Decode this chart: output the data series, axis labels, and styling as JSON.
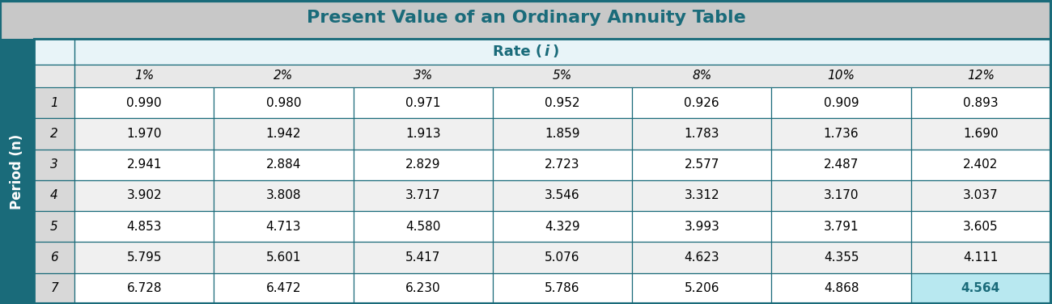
{
  "title": "Present Value of an Ordinary Annuity Table",
  "title_color": "#1a6b7a",
  "title_bg_color": "#c8c8c8",
  "rate_header": "Rate (ι)",
  "rate_header_italic": "i",
  "rate_header_bg": "#e8f4f8",
  "rate_header_color": "#1a6b7a",
  "period_label": "Period (n)",
  "period_label_color": "#1a6b7a",
  "period_label_bg": "#1a6b7a",
  "col_headers": [
    "",
    "1%",
    "2%",
    "3%",
    "5%",
    "8%",
    "10%",
    "12%"
  ],
  "row_labels": [
    "1",
    "2",
    "3",
    "4",
    "5",
    "6",
    "7"
  ],
  "table_data": [
    [
      "0.990",
      "0.980",
      "0.971",
      "0.952",
      "0.926",
      "0.909",
      "0.893"
    ],
    [
      "1.970",
      "1.942",
      "1.913",
      "1.859",
      "1.783",
      "1.736",
      "1.690"
    ],
    [
      "2.941",
      "2.884",
      "2.829",
      "2.723",
      "2.577",
      "2.487",
      "2.402"
    ],
    [
      "3.902",
      "3.808",
      "3.717",
      "3.546",
      "3.312",
      "3.170",
      "3.037"
    ],
    [
      "4.853",
      "4.713",
      "4.580",
      "4.329",
      "3.993",
      "3.791",
      "3.605"
    ],
    [
      "5.795",
      "5.601",
      "5.417",
      "5.076",
      "4.623",
      "4.355",
      "4.111"
    ],
    [
      "6.728",
      "6.472",
      "6.230",
      "5.786",
      "5.206",
      "4.868",
      "4.564"
    ]
  ],
  "highlighted_cell": [
    6,
    6
  ],
  "highlight_bg": "#b8e8f0",
  "highlight_color": "#1a6b7a",
  "cell_bg_even": "#ffffff",
  "cell_bg_odd": "#f0f0f0",
  "border_color": "#1a6b7a",
  "text_color": "#000000",
  "period_col_bg": "#d8d8d8",
  "header_row_bg": "#e8e8e8"
}
